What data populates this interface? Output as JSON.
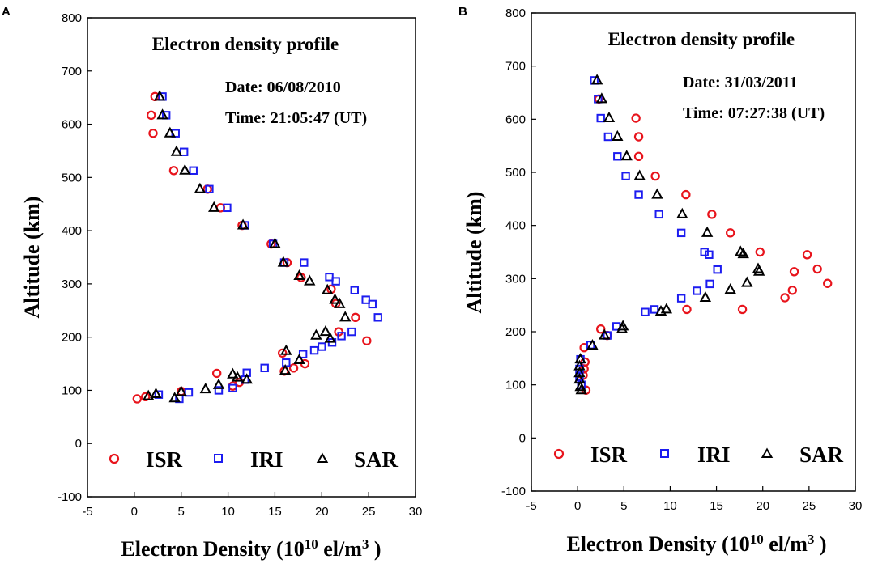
{
  "figure": {
    "legend_labels": [
      "ISR",
      "IRI",
      "SAR"
    ],
    "series_colors": {
      "ISR": "#e8141c",
      "IRI": "#1c1cf0",
      "SAR": "#000000"
    },
    "y_axis_label": "Altitude (km)",
    "x_axis_label_prefix": "Electron Density (10",
    "x_axis_label_exp10": "10",
    "x_axis_label_mid": " el/m",
    "x_axis_label_exp3": "3",
    "x_axis_label_suffix": " )"
  },
  "chart_data": [
    {
      "panel": "A",
      "type": "scatter",
      "title": "Electron density profile",
      "date_text": "Date: 06/08/2010",
      "time_text": "Time: 21:05:47 (UT)",
      "xlim": [
        -5,
        30
      ],
      "ylim": [
        -100,
        800
      ],
      "xticks": [
        -5,
        0,
        5,
        10,
        15,
        20,
        25,
        30
      ],
      "yticks": [
        -100,
        0,
        100,
        200,
        300,
        400,
        500,
        600,
        700,
        800
      ],
      "xlabel": "Electron Density (10^10 el/m^3 )",
      "ylabel": "Altitude (km)",
      "series": [
        {
          "name": "ISR",
          "marker": "circle",
          "points": [
            [
              2.2,
              652
            ],
            [
              1.8,
              617
            ],
            [
              2.0,
              583
            ],
            [
              4.2,
              513
            ],
            [
              7.8,
              478
            ],
            [
              9.2,
              443
            ],
            [
              11.5,
              410
            ],
            [
              14.6,
              375
            ],
            [
              16.3,
              340
            ],
            [
              17.8,
              312
            ],
            [
              21.0,
              290
            ],
            [
              21.5,
              263
            ],
            [
              23.6,
              237
            ],
            [
              21.8,
              210
            ],
            [
              24.8,
              193
            ],
            [
              15.8,
              170
            ],
            [
              18.2,
              150
            ],
            [
              17.0,
              142
            ],
            [
              16.0,
              136
            ],
            [
              8.8,
              132
            ],
            [
              11.2,
              115
            ],
            [
              10.5,
              108
            ],
            [
              5.0,
              98
            ],
            [
              0.3,
              84
            ],
            [
              1.2,
              88
            ]
          ]
        },
        {
          "name": "IRI",
          "marker": "square",
          "points": [
            [
              3.0,
              652
            ],
            [
              3.4,
              617
            ],
            [
              4.4,
              583
            ],
            [
              5.3,
              548
            ],
            [
              6.3,
              513
            ],
            [
              8.0,
              478
            ],
            [
              9.9,
              443
            ],
            [
              11.8,
              410
            ],
            [
              14.8,
              375
            ],
            [
              16.0,
              340
            ],
            [
              18.1,
              340
            ],
            [
              20.8,
              313
            ],
            [
              21.5,
              305
            ],
            [
              23.5,
              288
            ],
            [
              24.7,
              270
            ],
            [
              25.4,
              262
            ],
            [
              26.0,
              237
            ],
            [
              23.2,
              210
            ],
            [
              22.1,
              202
            ],
            [
              21.1,
              190
            ],
            [
              20.0,
              182
            ],
            [
              19.2,
              175
            ],
            [
              18.0,
              168
            ],
            [
              16.2,
              152
            ],
            [
              13.9,
              142
            ],
            [
              12.0,
              133
            ],
            [
              11.8,
              120
            ],
            [
              10.5,
              104
            ],
            [
              9.0,
              100
            ],
            [
              5.8,
              96
            ],
            [
              4.8,
              84
            ],
            [
              2.6,
              92
            ]
          ]
        },
        {
          "name": "SAR",
          "marker": "triangle",
          "points": [
            [
              2.7,
              652
            ],
            [
              3.0,
              617
            ],
            [
              3.8,
              583
            ],
            [
              4.5,
              548
            ],
            [
              5.4,
              513
            ],
            [
              7.0,
              478
            ],
            [
              8.5,
              443
            ],
            [
              11.6,
              410
            ],
            [
              15.0,
              375
            ],
            [
              15.9,
              340
            ],
            [
              17.6,
              315
            ],
            [
              18.7,
              305
            ],
            [
              20.6,
              288
            ],
            [
              21.4,
              270
            ],
            [
              21.9,
              262
            ],
            [
              22.5,
              237
            ],
            [
              20.4,
              210
            ],
            [
              19.4,
              203
            ],
            [
              20.9,
              197
            ],
            [
              17.6,
              157
            ],
            [
              16.2,
              174
            ],
            [
              16.1,
              137
            ],
            [
              12.0,
              120
            ],
            [
              11.0,
              124
            ],
            [
              10.5,
              130
            ],
            [
              9.0,
              110
            ],
            [
              7.6,
              102
            ],
            [
              4.3,
              85
            ],
            [
              5.0,
              97
            ],
            [
              2.3,
              93
            ],
            [
              1.5,
              89
            ]
          ]
        }
      ]
    },
    {
      "panel": "B",
      "type": "scatter",
      "title": "Electron density profile",
      "date_text": "Date: 31/03/2011",
      "time_text": "Time: 07:27:38 (UT)",
      "xlim": [
        -5,
        30
      ],
      "ylim": [
        -100,
        800
      ],
      "xticks": [
        -5,
        0,
        5,
        10,
        15,
        20,
        25,
        30
      ],
      "yticks": [
        -100,
        0,
        100,
        200,
        300,
        400,
        500,
        600,
        700,
        800
      ],
      "xlabel": "Electron Density (10^10 el/m^3 )",
      "ylabel": "Altitude (km)",
      "series": [
        {
          "name": "ISR",
          "marker": "circle",
          "points": [
            [
              2.3,
              638
            ],
            [
              6.3,
              602
            ],
            [
              6.6,
              567
            ],
            [
              6.6,
              530
            ],
            [
              8.4,
              493
            ],
            [
              11.7,
              458
            ],
            [
              14.5,
              421
            ],
            [
              16.5,
              386
            ],
            [
              19.7,
              350
            ],
            [
              24.8,
              345
            ],
            [
              23.4,
              313
            ],
            [
              25.9,
              318
            ],
            [
              27.0,
              291
            ],
            [
              23.2,
              278
            ],
            [
              22.4,
              264
            ],
            [
              17.8,
              242
            ],
            [
              11.8,
              242
            ],
            [
              2.5,
              205
            ],
            [
              3.2,
              193
            ],
            [
              0.7,
              170
            ],
            [
              0.8,
              143
            ],
            [
              0.7,
              130
            ],
            [
              0.6,
              118
            ],
            [
              0.9,
              90
            ]
          ]
        },
        {
          "name": "IRI",
          "marker": "square",
          "points": [
            [
              1.8,
              673
            ],
            [
              2.2,
              638
            ],
            [
              2.5,
              602
            ],
            [
              3.3,
              567
            ],
            [
              4.3,
              530
            ],
            [
              5.2,
              493
            ],
            [
              6.6,
              458
            ],
            [
              8.8,
              421
            ],
            [
              11.2,
              386
            ],
            [
              13.7,
              350
            ],
            [
              14.2,
              345
            ],
            [
              15.1,
              317
            ],
            [
              14.3,
              290
            ],
            [
              12.9,
              277
            ],
            [
              11.2,
              263
            ],
            [
              8.3,
              242
            ],
            [
              7.3,
              237
            ],
            [
              4.2,
              210
            ],
            [
              3.2,
              193
            ],
            [
              1.4,
              175
            ],
            [
              0.3,
              148
            ],
            [
              0.2,
              130
            ],
            [
              0.2,
              115
            ],
            [
              0.4,
              100
            ]
          ]
        },
        {
          "name": "SAR",
          "marker": "triangle",
          "points": [
            [
              2.1,
              673
            ],
            [
              2.6,
              638
            ],
            [
              3.4,
              602
            ],
            [
              4.3,
              567
            ],
            [
              5.3,
              530
            ],
            [
              6.7,
              493
            ],
            [
              8.6,
              458
            ],
            [
              11.3,
              421
            ],
            [
              14.0,
              386
            ],
            [
              17.6,
              350
            ],
            [
              17.9,
              346
            ],
            [
              19.5,
              318
            ],
            [
              19.6,
              313
            ],
            [
              16.5,
              279
            ],
            [
              18.3,
              292
            ],
            [
              13.8,
              264
            ],
            [
              9.6,
              242
            ],
            [
              9.0,
              238
            ],
            [
              4.9,
              210
            ],
            [
              4.8,
              205
            ],
            [
              2.9,
              193
            ],
            [
              1.6,
              174
            ],
            [
              0.3,
              148
            ],
            [
              0.2,
              135
            ],
            [
              0.2,
              122
            ],
            [
              0.2,
              110
            ],
            [
              0.3,
              96
            ],
            [
              0.4,
              90
            ]
          ]
        }
      ]
    }
  ]
}
